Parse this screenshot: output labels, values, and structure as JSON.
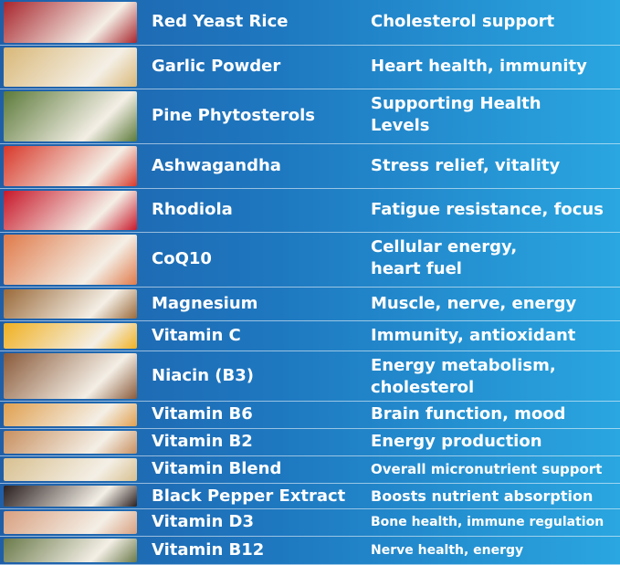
{
  "table": {
    "rows": [
      [
        "Red Yeast Rice",
        "Cholesterol support"
      ],
      [
        "Garlic Powder",
        "Heart health, immunity"
      ],
      [
        "Pine Phytosterols",
        "Supporting Health\nLevels"
      ],
      [
        "Ashwagandha",
        "Stress relief, vitality"
      ],
      [
        "Rhodiola",
        "Fatigue resistance, focus"
      ],
      [
        "CoQ10",
        "Cellular energy,\nheart fuel"
      ],
      [
        "Magnesium",
        "Muscle, nerve, energy"
      ],
      [
        "Vitamin C",
        "Immunity, antioxidant"
      ],
      [
        "Niacin (B3)",
        "Energy metabolism,\ncholesterol"
      ],
      [
        "Vitamin B6",
        "Brain function, mood"
      ],
      [
        "Vitamin B2",
        "Energy production"
      ],
      [
        "Vitamin Blend",
        "Overall micronutrient support"
      ],
      [
        "Black Pepper Extract",
        "Boosts nutrient absorption"
      ],
      [
        "Vitamin D3",
        "Bone health, immune regulation"
      ],
      [
        "Vitamin B12",
        "Nerve health, energy"
      ]
    ]
  }
}
